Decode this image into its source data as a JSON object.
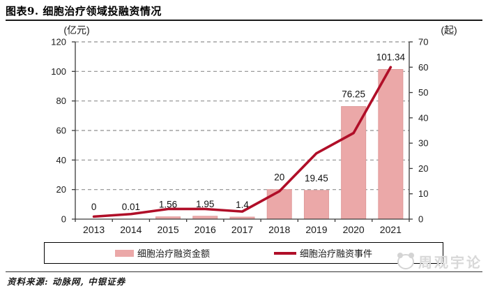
{
  "header": {
    "title": "图表9. 细胞治疗领域投融资情况"
  },
  "chart_data": {
    "type": "bar+line",
    "categories": [
      "2013",
      "2014",
      "2015",
      "2016",
      "2017",
      "2018",
      "2019",
      "2020",
      "2021"
    ],
    "series": [
      {
        "name": "细胞治疗融资金额",
        "type": "bar",
        "axis": "left",
        "values": [
          0,
          0.01,
          1.56,
          1.95,
          1.4,
          20,
          19.45,
          76.25,
          101.34
        ],
        "labels": [
          "0",
          "0.01",
          "1.56",
          "1.95",
          "1.4",
          "20",
          "19.45",
          "76.25",
          "101.34"
        ],
        "color": "#EBA8A8"
      },
      {
        "name": "细胞治疗融资事件",
        "type": "line",
        "axis": "right",
        "values": [
          1,
          2,
          4,
          4,
          3,
          11,
          26,
          34,
          60
        ],
        "color": "#B00E28"
      }
    ],
    "left_axis": {
      "label": "(亿元)",
      "min": 0,
      "max": 120,
      "ticks": [
        0,
        20,
        40,
        60,
        80,
        100,
        120
      ]
    },
    "right_axis": {
      "label": "(起)",
      "min": 0,
      "max": 70,
      "ticks": [
        0,
        10,
        20,
        30,
        40,
        50,
        60,
        70
      ]
    },
    "grid": "horizontal-dashed",
    "legend_position": "bottom-boxed"
  },
  "legend": {
    "items": [
      {
        "label": "细胞治疗融资金额",
        "swatch": "bar"
      },
      {
        "label": "细胞治疗融资事件",
        "swatch": "line"
      }
    ]
  },
  "footer": {
    "source": "资料来源: 动脉网, 中银证券",
    "watermark": "周观宇论"
  }
}
